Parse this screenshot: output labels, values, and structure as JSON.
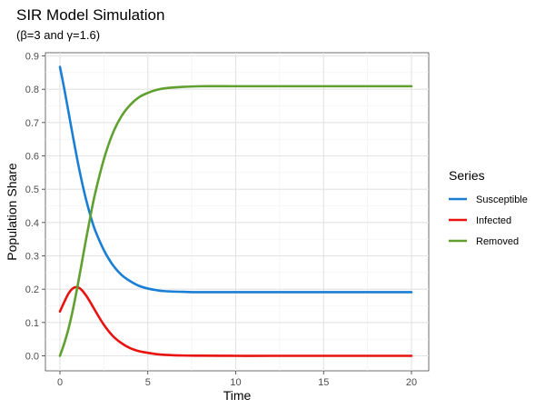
{
  "chart_data": {
    "type": "line",
    "title": "SIR Model Simulation",
    "subtitle": "(β=3 and γ=1.6)",
    "xlabel": "Time",
    "ylabel": "Population Share",
    "xlim": [
      0,
      20
    ],
    "ylim": [
      0,
      0.9
    ],
    "x_ticks": [
      0,
      5,
      10,
      15,
      20
    ],
    "y_ticks": [
      0.0,
      0.1,
      0.2,
      0.3,
      0.4,
      0.5,
      0.6,
      0.7,
      0.8,
      0.9
    ],
    "y_tick_labels": [
      "0.0",
      "0.1",
      "0.2",
      "0.3",
      "0.4",
      "0.5",
      "0.6",
      "0.7",
      "0.8",
      "0.9"
    ],
    "grid": true,
    "legend": {
      "title": "Series",
      "position": "right"
    },
    "series": [
      {
        "name": "Susceptible",
        "color": "#1a7fd4",
        "x": [
          0,
          0.25,
          0.5,
          0.75,
          1,
          1.25,
          1.5,
          1.75,
          2,
          2.5,
          3,
          3.5,
          4,
          4.5,
          5,
          5.5,
          6,
          7,
          8,
          10,
          12,
          15,
          20
        ],
        "y": [
          0.867,
          0.8,
          0.728,
          0.655,
          0.585,
          0.522,
          0.466,
          0.418,
          0.377,
          0.317,
          0.273,
          0.243,
          0.224,
          0.21,
          0.202,
          0.197,
          0.194,
          0.192,
          0.191,
          0.191,
          0.191,
          0.191,
          0.191
        ]
      },
      {
        "name": "Infected",
        "color": "#e8130f",
        "x": [
          0,
          0.25,
          0.5,
          0.75,
          1,
          1.25,
          1.5,
          1.75,
          2,
          2.5,
          3,
          3.5,
          4,
          4.5,
          5,
          5.5,
          6,
          7,
          8,
          10,
          12,
          15,
          20
        ],
        "y": [
          0.133,
          0.162,
          0.188,
          0.203,
          0.206,
          0.197,
          0.18,
          0.159,
          0.136,
          0.093,
          0.06,
          0.038,
          0.023,
          0.014,
          0.009,
          0.005,
          0.003,
          0.001,
          0.0005,
          0.0,
          0.0,
          0.0,
          0.0
        ]
      },
      {
        "name": "Removed",
        "color": "#5fa02f",
        "x": [
          0,
          0.25,
          0.5,
          0.75,
          1,
          1.25,
          1.5,
          1.75,
          2,
          2.5,
          3,
          3.5,
          4,
          4.5,
          5,
          5.5,
          6,
          7,
          8,
          10,
          12,
          15,
          20
        ],
        "y": [
          0.0,
          0.038,
          0.084,
          0.142,
          0.209,
          0.281,
          0.354,
          0.423,
          0.487,
          0.59,
          0.667,
          0.719,
          0.753,
          0.776,
          0.789,
          0.798,
          0.803,
          0.807,
          0.809,
          0.809,
          0.809,
          0.809,
          0.809
        ]
      }
    ]
  }
}
